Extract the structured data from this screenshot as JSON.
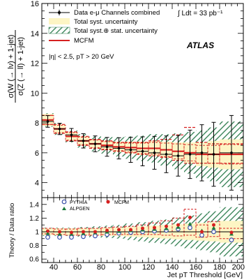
{
  "chart_data": [
    {
      "type": "line",
      "panel": "upper",
      "ylabel_lines": [
        "σ(W (→ lν) + 1-jet)",
        "σ(Z (→ ll) + 1-jet)"
      ],
      "xlim": [
        30,
        200
      ],
      "ylim": [
        3,
        16
      ],
      "ytick_labels": [
        "4",
        "6",
        "8",
        "10",
        "12",
        "14",
        "16"
      ],
      "ytick_values": [
        4,
        6,
        8,
        10,
        12,
        14,
        16
      ],
      "legend": [
        {
          "label": "Data e-μ Channels combined",
          "style": "data-point"
        },
        {
          "label": "Total syst. uncertainty",
          "style": "yellow-band"
        },
        {
          "label": "Total syst.⊕ stat. uncertainty",
          "style": "green-hatch"
        },
        {
          "label": "MCFM",
          "style": "red-line"
        }
      ],
      "annotations": {
        "lumi": "∫ Ldt = 33 pb⁻¹",
        "experiment": "ATLAS",
        "cuts": "|η| < 2.5, pT > 20 GeV"
      },
      "bin_edges": [
        30,
        40,
        50,
        60,
        70,
        80,
        90,
        100,
        110,
        120,
        130,
        140,
        150,
        160,
        170,
        180,
        200
      ],
      "data": {
        "x": [
          35,
          45,
          55,
          65,
          75,
          85,
          95,
          105,
          115,
          125,
          135,
          145,
          155,
          165,
          175,
          190
        ],
        "y": [
          8.1,
          7.6,
          7.2,
          6.8,
          6.6,
          6.4,
          6.3,
          6.2,
          6.1,
          6.0,
          5.9,
          5.8,
          5.9,
          6.0,
          5.9,
          6.0
        ],
        "stat_err": [
          0.15,
          0.2,
          0.25,
          0.3,
          0.35,
          0.45,
          0.5,
          0.6,
          0.7,
          0.8,
          0.9,
          1.0,
          1.2,
          1.4,
          1.6,
          1.9
        ]
      },
      "syst_band_halfwidth": [
        0.4,
        0.3,
        0.3,
        0.3,
        0.3,
        0.3,
        0.35,
        0.4,
        0.45,
        0.5,
        0.55,
        0.6,
        0.7,
        0.8,
        0.9,
        1.0
      ],
      "total_band_halfwidth": [
        0.45,
        0.4,
        0.4,
        0.45,
        0.5,
        0.55,
        0.65,
        0.75,
        0.85,
        0.95,
        1.05,
        1.2,
        1.4,
        1.6,
        1.8,
        2.2
      ],
      "mcfm": {
        "y": [
          8.2,
          7.6,
          7.1,
          6.8,
          6.6,
          6.5,
          6.4,
          6.35,
          6.3,
          6.3,
          6.2,
          6.1,
          6.0,
          5.9,
          5.9,
          5.9
        ],
        "unc_halfwidth": [
          0.3,
          0.25,
          0.25,
          0.25,
          0.25,
          0.25,
          0.25,
          0.3,
          0.35,
          0.4,
          0.45,
          0.5,
          0.55,
          0.6,
          0.6,
          0.65
        ],
        "dashed_upper": [
          8.5,
          7.9,
          7.4,
          7.1,
          6.9,
          6.8,
          6.7,
          6.7,
          6.7,
          6.8,
          6.9,
          7.2,
          7.7,
          6.7,
          6.6,
          6.6
        ],
        "dashed_lower": [
          7.9,
          7.3,
          6.8,
          6.5,
          6.3,
          6.2,
          6.1,
          6.0,
          5.9,
          5.8,
          5.7,
          5.5,
          5.3,
          5.3,
          5.3,
          5.3
        ]
      }
    },
    {
      "type": "scatter",
      "panel": "lower",
      "ylabel": "Theory / Data ratio",
      "xlabel": "Jet pT Threshold [GeV]",
      "xlim": [
        30,
        200
      ],
      "ylim": [
        0.55,
        1.5
      ],
      "xtick_labels": [
        "40",
        "60",
        "80",
        "100",
        "120",
        "140",
        "160",
        "180",
        "200"
      ],
      "xtick_values": [
        40,
        60,
        80,
        100,
        120,
        140,
        160,
        180,
        200
      ],
      "ytick_labels": [
        "0.6",
        "0.8",
        "1",
        "1.2",
        "1.4"
      ],
      "ytick_values": [
        0.6,
        0.8,
        1.0,
        1.2,
        1.4
      ],
      "legend": [
        {
          "label": "PYTHIA",
          "style": "open-blue-circle"
        },
        {
          "label": "MCFM",
          "style": "red-dot"
        },
        {
          "label": "ALPGEN",
          "style": "green-triangle"
        }
      ],
      "bin_edges": [
        30,
        40,
        50,
        60,
        70,
        80,
        90,
        100,
        110,
        120,
        130,
        140,
        150,
        160,
        170,
        180,
        200
      ],
      "x": [
        35,
        45,
        55,
        65,
        75,
        85,
        95,
        105,
        115,
        125,
        135,
        145,
        155,
        165,
        175,
        190
      ],
      "band_syst": [
        0.05,
        0.05,
        0.05,
        0.05,
        0.05,
        0.06,
        0.06,
        0.07,
        0.08,
        0.09,
        0.1,
        0.11,
        0.12,
        0.13,
        0.14,
        0.16
      ],
      "band_total": [
        0.06,
        0.06,
        0.06,
        0.07,
        0.08,
        0.09,
        0.1,
        0.12,
        0.14,
        0.16,
        0.18,
        0.21,
        0.24,
        0.27,
        0.3,
        0.36
      ],
      "series": [
        {
          "name": "PYTHIA",
          "y": [
            0.92,
            0.92,
            0.92,
            0.93,
            0.94,
            0.96,
            0.98,
            0.99,
            1.0,
            1.01,
            1.02,
            1.04,
            1.06,
            0.95,
            1.0,
            0.88
          ]
        },
        {
          "name": "MCFM",
          "y": [
            1.01,
            1.0,
            0.99,
            1.0,
            1.0,
            1.02,
            1.03,
            1.03,
            1.05,
            1.06,
            1.08,
            1.1,
            1.21,
            1.0,
            1.1,
            0.99
          ]
        },
        {
          "name": "ALPGEN",
          "y": [
            0.98,
            0.97,
            0.97,
            0.98,
            0.99,
            1.0,
            1.01,
            1.02,
            1.03,
            1.04,
            1.05,
            1.07,
            1.12,
            1.02,
            1.06,
            0.97
          ]
        }
      ],
      "mcfm_dashed_upper": [
        1.05,
        1.04,
        1.04,
        1.05,
        1.05,
        1.06,
        1.07,
        1.08,
        1.1,
        1.13,
        1.16,
        1.2,
        1.33,
        1.1,
        1.15,
        1.05
      ],
      "mcfm_dashed_lower": [
        0.97,
        0.96,
        0.95,
        0.95,
        0.95,
        0.96,
        0.96,
        0.96,
        0.96,
        0.96,
        0.95,
        0.94,
        0.95,
        0.92,
        0.93,
        0.9
      ]
    }
  ]
}
